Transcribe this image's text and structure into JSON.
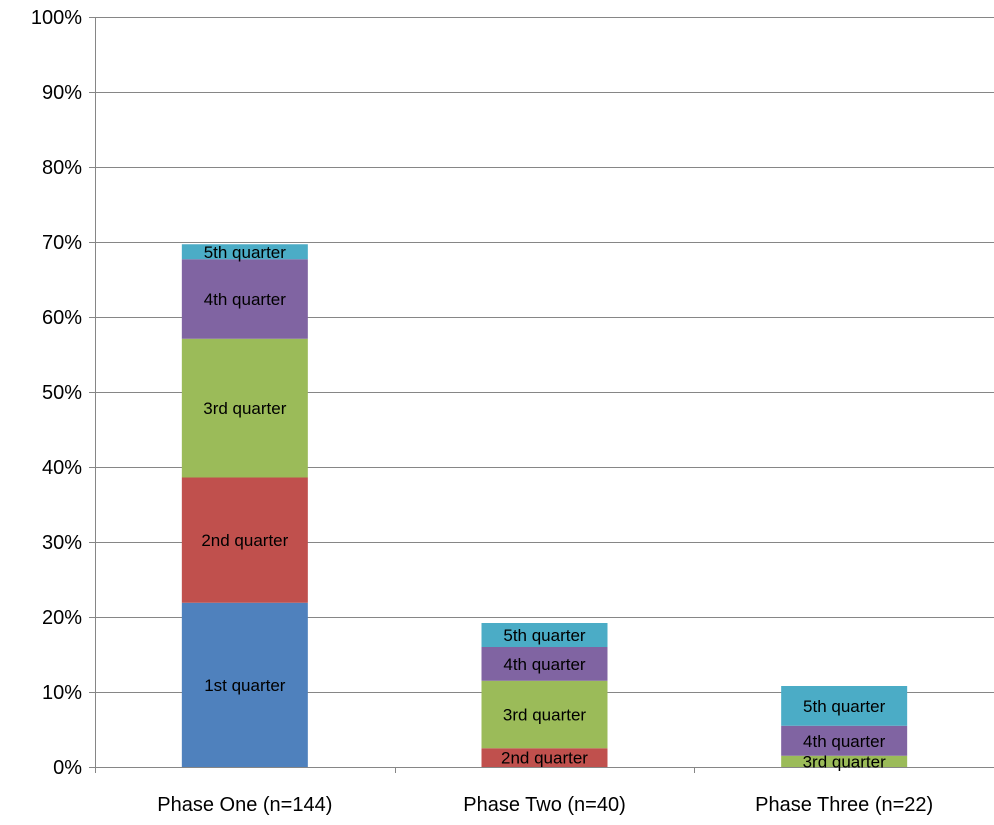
{
  "chart_data": {
    "type": "bar",
    "stacked": true,
    "categories": [
      "Phase One (n=144)",
      "Phase Two (n=40)",
      "Phase Three (n=22)"
    ],
    "series": [
      {
        "name": "1st quarter",
        "color": "#4F81BD",
        "values": [
          21.9,
          0,
          0
        ]
      },
      {
        "name": "2nd quarter",
        "color": "#C0504D",
        "values": [
          16.7,
          2.5,
          0
        ]
      },
      {
        "name": "3rd quarter",
        "color": "#9BBB59",
        "values": [
          18.5,
          9.0,
          1.5
        ]
      },
      {
        "name": "4th quarter",
        "color": "#8064A2",
        "values": [
          10.6,
          4.5,
          4.0
        ]
      },
      {
        "name": "5th quarter",
        "color": "#4BACC6",
        "values": [
          2.0,
          3.2,
          5.3
        ]
      }
    ],
    "ylim": [
      0,
      100
    ],
    "yticks": [
      0,
      10,
      20,
      30,
      40,
      50,
      60,
      70,
      80,
      90,
      100
    ],
    "ytick_labels": [
      "0%",
      "10%",
      "20%",
      "30%",
      "40%",
      "50%",
      "60%",
      "70%",
      "80%",
      "90%",
      "100%"
    ],
    "grid": true,
    "legend": "none",
    "data_labels": "series name inside segment"
  }
}
